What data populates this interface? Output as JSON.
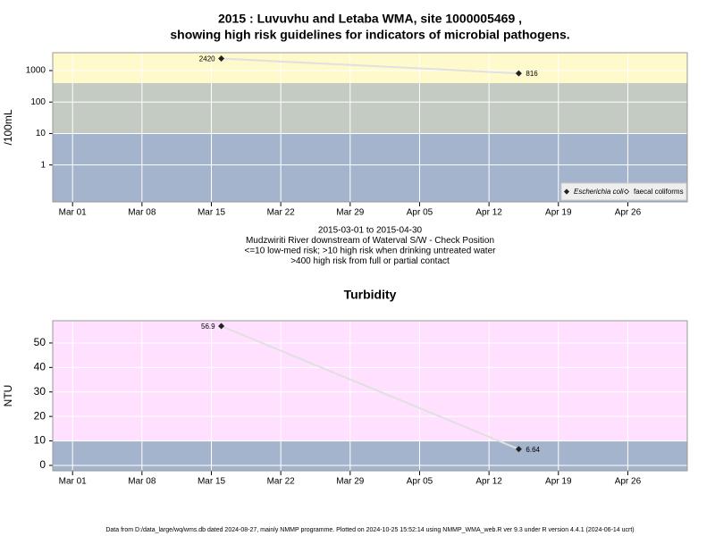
{
  "chart_data": [
    {
      "type": "line",
      "log_scale": true,
      "title": [
        "2015 : Luvuvhu and Letaba WMA, site 1000005469 ,",
        "showing high risk guidelines for indicators of microbial pathogens."
      ],
      "ylabel": "/100mL",
      "x": [
        "2015-03-16",
        "2015-04-15"
      ],
      "series": [
        {
          "name": "Escherichia coli",
          "color": "#222222",
          "values": [
            2420,
            816
          ]
        },
        {
          "name": "faecal coliforms",
          "color": "#222222",
          "values": [
            null,
            null
          ]
        }
      ],
      "line_color": "#e0e0e0",
      "xlim": [
        "2015-02-27",
        "2015-05-02"
      ],
      "xticks": [
        {
          "value": "2015-03-01",
          "label": "Mar 01"
        },
        {
          "value": "2015-03-08",
          "label": "Mar 08"
        },
        {
          "value": "2015-03-15",
          "label": "Mar 15"
        },
        {
          "value": "2015-03-22",
          "label": "Mar 22"
        },
        {
          "value": "2015-03-29",
          "label": "Mar 29"
        },
        {
          "value": "2015-04-05",
          "label": "Apr 05"
        },
        {
          "value": "2015-04-12",
          "label": "Apr 12"
        },
        {
          "value": "2015-04-19",
          "label": "Apr 19"
        },
        {
          "value": "2015-04-26",
          "label": "Apr 26"
        }
      ],
      "ylim": [
        0.067,
        3700
      ],
      "yticks": [
        1,
        10,
        100,
        1000
      ],
      "band_breaks": [
        10,
        400
      ],
      "band_colors": [
        "#a3b4cc",
        "#c3cbc3",
        "#fffacb"
      ],
      "grid": true,
      "legend": "bottom-right",
      "notes": [
        "2015-03-01 to 2015-04-30",
        "Mudzwiriti River downstream of Waterval S/W - Check Position",
        "<=10 low-med risk; >10 high risk when drinking untreated water",
        ">400 high risk from full or partial contact"
      ]
    },
    {
      "type": "line",
      "log_scale": false,
      "title": [
        "Turbidity"
      ],
      "ylabel": "NTU",
      "x": [
        "2015-03-16",
        "2015-04-15"
      ],
      "series": [
        {
          "name": "Turbidity",
          "color": "#222222",
          "values": [
            56.9,
            6.64
          ]
        }
      ],
      "line_color": "#e0e0e0",
      "xlim": [
        "2015-02-27",
        "2015-05-02"
      ],
      "xticks": [
        {
          "value": "2015-03-01",
          "label": "Mar 01"
        },
        {
          "value": "2015-03-08",
          "label": "Mar 08"
        },
        {
          "value": "2015-03-15",
          "label": "Mar 15"
        },
        {
          "value": "2015-03-22",
          "label": "Mar 22"
        },
        {
          "value": "2015-03-29",
          "label": "Mar 29"
        },
        {
          "value": "2015-04-05",
          "label": "Apr 05"
        },
        {
          "value": "2015-04-12",
          "label": "Apr 12"
        },
        {
          "value": "2015-04-19",
          "label": "Apr 19"
        },
        {
          "value": "2015-04-26",
          "label": "Apr 26"
        }
      ],
      "ylim": [
        -2.2,
        59.1
      ],
      "yticks": [
        0,
        10,
        20,
        30,
        40,
        50
      ],
      "band_breaks": [
        10
      ],
      "band_colors": [
        "#a3b4cc",
        "#ffe0ff"
      ],
      "grid": true
    }
  ],
  "footer": "Data from D:/data_large/wq/wms.db dated 2024-08-27, mainly NMMP programme. Plotted on 2024-10-25 15:52:14 using NMMP_WMA_web.R ver 9.3 under R version 4.4.1 (2024-06-14 ucrt)"
}
